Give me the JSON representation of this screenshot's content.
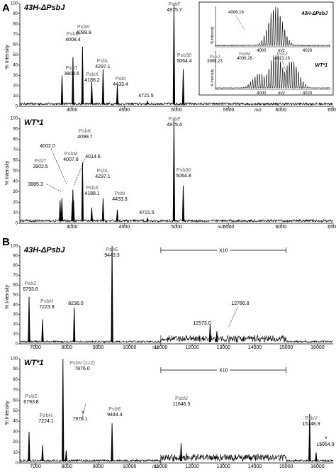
{
  "figure": {
    "panel_A_letter": "A",
    "panel_B_letter": "B",
    "y_axis_label": "% Intensity",
    "x_axis_label": "m/z",
    "star": "*"
  },
  "chart_data": [
    {
      "id": "A1",
      "type": "line",
      "panel": "A",
      "sample": "43H-ΔPsbJ",
      "xlabel": "m/z",
      "ylabel": "% Intensity",
      "xlim": [
        3500,
        6500
      ],
      "ylim": [
        0,
        100
      ],
      "xticks": [
        4000,
        4500,
        5000,
        5500,
        6000,
        6500
      ],
      "yticks": [
        0,
        10,
        20,
        30,
        40,
        50,
        60,
        70,
        80,
        90,
        100
      ],
      "peaks": [
        {
          "name": "PsbT",
          "label": "3903.6",
          "x": 3903.6,
          "y": 30
        },
        {
          "name": "PsbM",
          "label": "4008.4",
          "x": 4008.4,
          "y": 48
        },
        {
          "name": "PsbK",
          "label": "4099.9",
          "x": 4099.9,
          "y": 58
        },
        {
          "name": "PsbX",
          "label": "4188.2",
          "x": 4188.2,
          "y": 24
        },
        {
          "name": "PsbL",
          "label": "4297.1",
          "x": 4297.1,
          "y": 36
        },
        {
          "name": "PsbI",
          "label": "4433.4",
          "x": 4433.4,
          "y": 21
        },
        {
          "name": "",
          "label": "4721.5",
          "x": 4721.5,
          "y": 5
        },
        {
          "name": "PsbF",
          "label": "4975.7",
          "x": 4975.7,
          "y": 100
        },
        {
          "name": "Psb30",
          "label": "5064.4",
          "x": 5064.4,
          "y": 36
        }
      ]
    },
    {
      "id": "A1inset1",
      "type": "line",
      "panel": "A-inset",
      "sample": "43H-ΔPsbJ",
      "xlabel": "m/z",
      "ylabel": "% Intensity",
      "xlim": [
        3980,
        4030
      ],
      "ylim": [
        0,
        100
      ],
      "xticks": [
        4000,
        4020
      ],
      "peaks": [
        {
          "name": "",
          "label": "4006.16",
          "x": 4006.16,
          "y": 100
        }
      ]
    },
    {
      "id": "A1inset2",
      "type": "line",
      "panel": "A-inset",
      "sample": "WT*1",
      "xlabel": "m/z",
      "ylabel": "% Intensity",
      "xlim": [
        3980,
        4030
      ],
      "ylim": [
        0,
        100
      ],
      "xticks": [
        4000,
        4020
      ],
      "peaks": [
        {
          "name": "PsbJ",
          "label": "3999.23",
          "x": 3999.23,
          "y": 40
        },
        {
          "name": "PsbM",
          "label": "4006.26",
          "x": 4006.26,
          "y": 92
        },
        {
          "name": "PsbJ",
          "label": "4013.16",
          "x": 4013.16,
          "y": 75
        }
      ]
    },
    {
      "id": "A2",
      "type": "line",
      "panel": "A",
      "sample": "WT*1",
      "xlabel": "m/z",
      "ylabel": "% Intensity",
      "xlim": [
        3500,
        6500
      ],
      "ylim": [
        0,
        100
      ],
      "xticks": [
        4000,
        4500,
        5000,
        5500,
        6000,
        6500
      ],
      "yticks": [
        0,
        10,
        20,
        30,
        40,
        50,
        60,
        70,
        80,
        90,
        100
      ],
      "peaks": [
        {
          "name": "",
          "label": "3885.3",
          "x": 3885.3,
          "y": 22
        },
        {
          "name": "PsbT",
          "label": "3902.5",
          "x": 3902.5,
          "y": 24
        },
        {
          "name": "",
          "label": "4002.0",
          "x": 4002.0,
          "y": 20
        },
        {
          "name": "PsbM",
          "label": "4007.8",
          "x": 4007.8,
          "y": 32
        },
        {
          "name": "",
          "label": "4014.6",
          "x": 4014.6,
          "y": 22
        },
        {
          "name": "PsbK",
          "label": "4099.7",
          "x": 4099.7,
          "y": 58
        },
        {
          "name": "PsbX",
          "label": "4188.1",
          "x": 4188.1,
          "y": 15
        },
        {
          "name": "PsbL",
          "label": "4297.1",
          "x": 4297.1,
          "y": 24
        },
        {
          "name": "PsbI",
          "label": "4433.3",
          "x": 4433.3,
          "y": 13
        },
        {
          "name": "",
          "label": "4721.5",
          "x": 4721.5,
          "y": 5
        },
        {
          "name": "PsbF",
          "label": "4975.4",
          "x": 4975.4,
          "y": 100
        },
        {
          "name": "Psb30",
          "label": "5064.8",
          "x": 5064.8,
          "y": 36
        }
      ]
    },
    {
      "id": "B1",
      "type": "line",
      "panel": "B",
      "sample": "43H-ΔPsbJ",
      "xlabel": "m/z",
      "ylabel": "% Intensity",
      "xlim": [
        6500,
        16500
      ],
      "ylim": [
        0,
        100
      ],
      "xticks": [
        7000,
        8000,
        9000,
        10000,
        11000,
        12000,
        13000,
        14000,
        15000,
        16000
      ],
      "yticks": [
        0,
        10,
        20,
        30,
        40,
        50,
        60,
        70,
        80,
        90,
        100
      ],
      "magnification": {
        "label": "X10",
        "from": 11000,
        "to": 15000
      },
      "peaks": [
        {
          "name": "PsbZ",
          "label": "6793.6",
          "x": 6793.6,
          "y": 48
        },
        {
          "name": "PsbH",
          "label": "7223.9",
          "x": 7223.9,
          "y": 25
        },
        {
          "name": "",
          "label": "8236.0",
          "x": 8236.0,
          "y": 37
        },
        {
          "name": "PsbE",
          "label": "9443.3",
          "x": 9443.3,
          "y": 100
        },
        {
          "name": "",
          "label": "12573.0",
          "x": 12573.0,
          "y": 20
        },
        {
          "name": "",
          "label": "12786.8",
          "x": 12786.8,
          "y": 13
        }
      ]
    },
    {
      "id": "B2",
      "type": "line",
      "panel": "B",
      "sample": "WT*1",
      "xlabel": "m/z",
      "ylabel": "% Intensity",
      "xlim": [
        6500,
        16500
      ],
      "ylim": [
        0,
        100
      ],
      "xticks": [
        7000,
        8000,
        9000,
        10000,
        11000,
        12000,
        13000,
        14000,
        15000,
        16000
      ],
      "yticks": [
        0,
        10,
        20,
        30,
        40,
        50,
        60,
        70,
        80,
        90,
        100
      ],
      "magnification": {
        "label": "X10",
        "from": 11000,
        "to": 15000
      },
      "peaks": [
        {
          "name": "PsbZ",
          "label": "6793.8",
          "x": 6793.8,
          "y": 30
        },
        {
          "name": "PsbH",
          "label": "7224.1",
          "x": 7224.1,
          "y": 17
        },
        {
          "name": "PsbV (z=2)",
          "label": "7876.0",
          "x": 7876.0,
          "y": 100
        },
        {
          "name": "",
          "label": "7979.1",
          "x": 7979.1,
          "y": 12,
          "star": true
        },
        {
          "name": "PsbE",
          "label": "9444.4",
          "x": 9444.4,
          "y": 38
        },
        {
          "name": "PsbU",
          "label": "11646.5",
          "x": 11646.5,
          "y": 19
        },
        {
          "name": "PsbV",
          "label": "15748.9",
          "x": 15748.9,
          "y": 47
        },
        {
          "name": "",
          "label": "15954.9",
          "x": 15954.9,
          "y": 10,
          "star": true
        }
      ]
    }
  ]
}
